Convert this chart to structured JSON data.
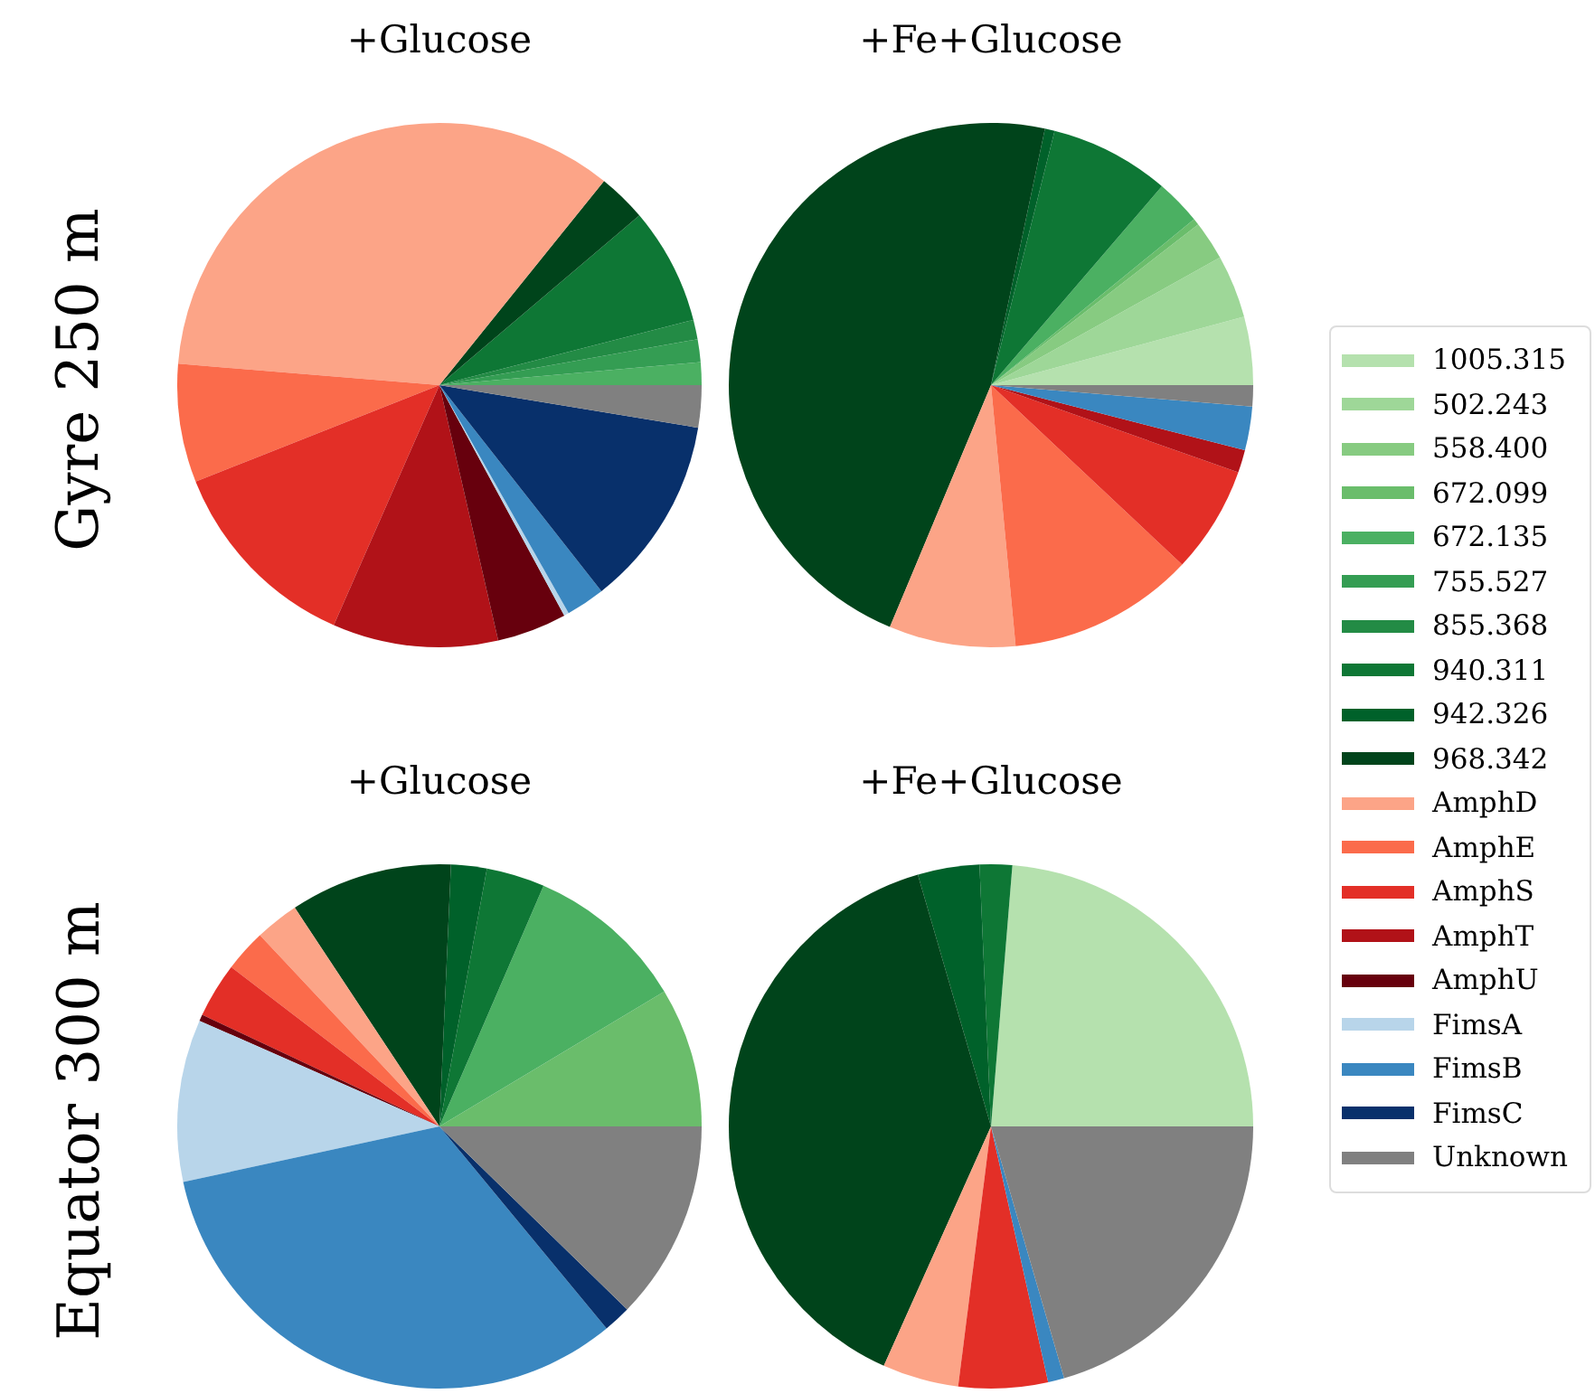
{
  "chart_data": [
    {
      "type": "pie",
      "title": "+Glucose",
      "ylabel": "Gyre 250 m",
      "legend": "right",
      "categories": [
        "1005.315",
        "502.243",
        "558.400",
        "672.099",
        "672.135",
        "755.527",
        "855.368",
        "940.311",
        "942.326",
        "968.342",
        "AmphD",
        "AmphE",
        "AmphS",
        "AmphT",
        "AmphU",
        "FimsA",
        "FimsB",
        "FimsC",
        "Unknown"
      ],
      "values": [
        0,
        0,
        0,
        0,
        1.4,
        1.4,
        1.2,
        7.2,
        0,
        3,
        34.5,
        7.3,
        12.4,
        10.2,
        4.3,
        0.3,
        2.4,
        11.8,
        2.6
      ],
      "colors": [
        "#b5e1ae",
        "#9ed798",
        "#87cb81",
        "#6abd6b",
        "#4bb062",
        "#349d53",
        "#238b45",
        "#0e7735",
        "#00612a",
        "#00441b",
        "#fca487",
        "#fb6b4b",
        "#e32f27",
        "#b11218",
        "#67000d",
        "#b8d5ea",
        "#3a87c0",
        "#08306b",
        "#808080"
      ]
    },
    {
      "type": "pie",
      "title": "+Fe+Glucose",
      "categories": [
        null,
        null,
        null,
        null,
        null,
        null,
        null,
        null,
        null,
        null,
        null,
        null,
        null,
        null,
        null,
        null,
        null,
        null,
        null
      ],
      "values": [
        4.2,
        3.9,
        2.4,
        0.4,
        2.8,
        0,
        0,
        7.4,
        0.6,
        47,
        7.8,
        11.5,
        6.6,
        1.4,
        0,
        0,
        2.7,
        0,
        1.3
      ],
      "colors": [
        "#b5e1ae",
        "#9ed798",
        "#87cb81",
        "#6abd6b",
        "#4bb062",
        "#349d53",
        "#238b45",
        "#0e7735",
        "#00612a",
        "#00441b",
        "#fca487",
        "#fb6b4b",
        "#e32f27",
        "#b11218",
        "#67000d",
        "#b8d5ea",
        "#3a87c0",
        "#08306b",
        "#808080"
      ]
    },
    {
      "type": "pie",
      "title": "+Glucose",
      "ylabel": "Equator 300 m",
      "categories": [
        null,
        null,
        null,
        null,
        null,
        null,
        null,
        null,
        null,
        null,
        null,
        null,
        null,
        null,
        null,
        null,
        null,
        null,
        null
      ],
      "values": [
        0,
        0,
        0,
        8.6,
        9.9,
        0,
        0,
        3.6,
        2.2,
        10,
        2.7,
        2.6,
        3.4,
        0,
        0.4,
        10,
        32.6,
        1.7,
        12.3
      ],
      "colors": [
        "#b5e1ae",
        "#9ed798",
        "#87cb81",
        "#6abd6b",
        "#4bb062",
        "#349d53",
        "#238b45",
        "#0e7735",
        "#00612a",
        "#00441b",
        "#fca487",
        "#fb6b4b",
        "#e32f27",
        "#b11218",
        "#67000d",
        "#b8d5ea",
        "#3a87c0",
        "#08306b",
        "#808080"
      ]
    },
    {
      "type": "pie",
      "title": "+Fe+Glucose",
      "categories": [
        null,
        null,
        null,
        null,
        null,
        null,
        null,
        null,
        null,
        null,
        null,
        null,
        null,
        null,
        null,
        null,
        null,
        null,
        null
      ],
      "values": [
        23.7,
        0,
        0,
        0,
        0,
        0,
        0,
        2,
        3.8,
        38.8,
        4.7,
        0,
        5.5,
        0,
        0,
        0,
        1,
        0,
        20.5
      ],
      "colors": [
        "#b5e1ae",
        "#9ed798",
        "#87cb81",
        "#6abd6b",
        "#4bb062",
        "#349d53",
        "#238b45",
        "#0e7735",
        "#00612a",
        "#00441b",
        "#fca487",
        "#fb6b4b",
        "#e32f27",
        "#b11218",
        "#67000d",
        "#b8d5ea",
        "#3a87c0",
        "#08306b",
        "#808080"
      ]
    }
  ]
}
